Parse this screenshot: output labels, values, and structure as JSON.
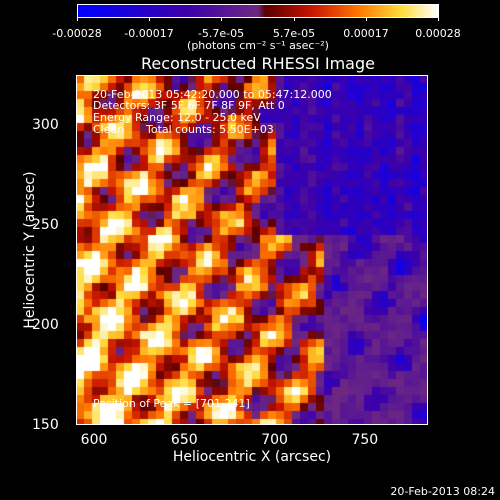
{
  "colorbar": {
    "tick_labels": [
      "-0.00028",
      "-0.00017",
      "-5.7e-05",
      "5.7e-05",
      "0.00017",
      "0.00028"
    ],
    "units": "(photons cm⁻² s⁻¹ asec⁻²)"
  },
  "chart_data": {
    "type": "heatmap",
    "title": "Reconstructed RHESSI Image",
    "xlabel": "Heliocentric X (arcsec)",
    "ylabel": "Heliocentric Y (arcsec)",
    "xlim": [
      590,
      785
    ],
    "ylim": [
      150,
      325
    ],
    "x_ticks": [
      "600",
      "650",
      "700",
      "750"
    ],
    "y_ticks": [
      "300",
      "250",
      "200",
      "150"
    ],
    "colormap": "blue-purple-red-yellow-white",
    "clim": [
      -0.00028,
      0.00028
    ],
    "peak_position": [
      701,
      241
    ]
  },
  "annotations": {
    "time_range": "20-Feb-2013 05:42:20.000 to 05:47:12.000",
    "detectors": "Detectors: 3F 5F 6F 7F 8F 9F, Att 0",
    "energy_range": "Energy Range: 12.0 - 25.0 keV",
    "method": "Clean",
    "total_counts": "Total counts: 5.50E+03",
    "peak": "Position of Peak = [701,241]"
  },
  "footer": {
    "timestamp": "20-Feb-2013 08:24"
  }
}
